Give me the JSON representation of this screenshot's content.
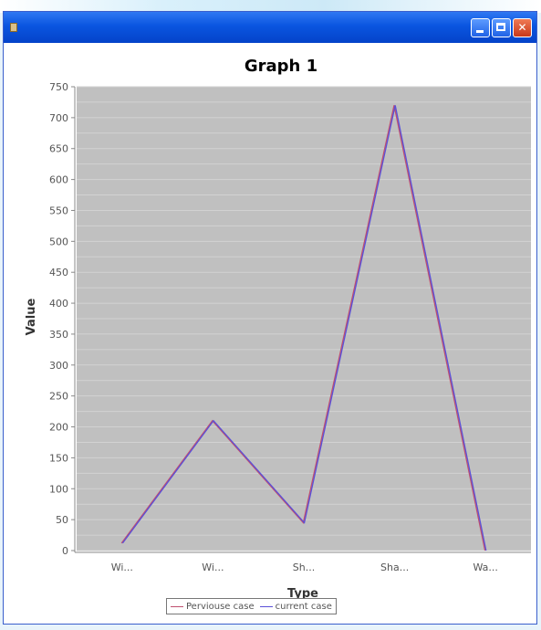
{
  "window": {
    "title": "",
    "buttons": [
      "minimize",
      "maximize",
      "close"
    ]
  },
  "icons": {
    "app": "app-icon",
    "minimize": "minimize-icon",
    "maximize": "maximize-icon",
    "close": "close-icon"
  },
  "colors": {
    "titlebar": "#0a55e0",
    "plot_background": "#c0c0c0",
    "series_1": "#c05070",
    "series_2": "#5a50d8"
  },
  "chart_data": {
    "type": "line",
    "title": "Graph 1",
    "xlabel": "Type",
    "ylabel": "Value",
    "categories": [
      "Wi...",
      "Wi...",
      "Sh...",
      "Sha...",
      "Wa..."
    ],
    "ylim": [
      0,
      750
    ],
    "yticks": [
      0,
      50,
      100,
      150,
      200,
      250,
      300,
      350,
      400,
      450,
      500,
      550,
      600,
      650,
      700,
      750
    ],
    "grid": true,
    "legend_position": "bottom",
    "series": [
      {
        "name": "Perviouse case",
        "color": "#c05070",
        "values": [
          12,
          210,
          45,
          720,
          0
        ]
      },
      {
        "name": "current case",
        "color": "#5a50d8",
        "values": [
          12,
          210,
          45,
          720,
          0
        ]
      }
    ]
  }
}
